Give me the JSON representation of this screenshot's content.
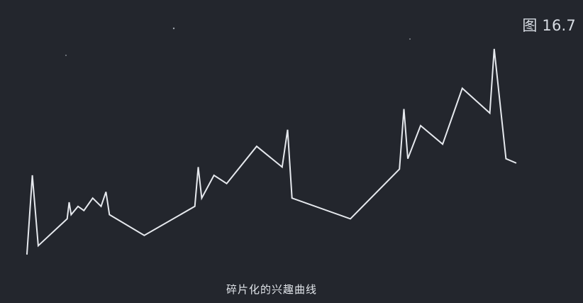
{
  "figure_label": "图 16.7",
  "caption": "碎片化的兴趣曲线",
  "colors": {
    "background": "#23262d",
    "line": "#e6e9ee",
    "text": "#d7dce3"
  },
  "chart_data": {
    "type": "line",
    "title": "",
    "xlabel": "",
    "ylabel": "",
    "axes_visible": false,
    "grid": false,
    "legend": "none",
    "xlim": [
      0,
      100
    ],
    "ylim": [
      0,
      100
    ],
    "series": [
      {
        "x": [
          0,
          1.1,
          2.3,
          8.2,
          8.6,
          9.0,
          10.4,
          11.6,
          13.4,
          15.1,
          16.1,
          16.8,
          23.9,
          34.2,
          34.9,
          35.6,
          38.1,
          40.7,
          46.8,
          52.0,
          53.1,
          54.0,
          65.9,
          75.9,
          76.8,
          77.6,
          80.2,
          84.7,
          88.7,
          94.3,
          95.2,
          97.6,
          99.6
        ],
        "y": [
          0,
          38,
          4,
          17,
          25,
          19,
          23,
          21,
          27,
          23,
          30,
          19,
          9,
          23,
          42,
          27,
          38,
          34,
          52,
          42,
          60,
          27,
          17,
          41,
          70,
          46,
          62,
          53,
          80,
          68,
          99,
          46,
          44
        ]
      }
    ]
  }
}
